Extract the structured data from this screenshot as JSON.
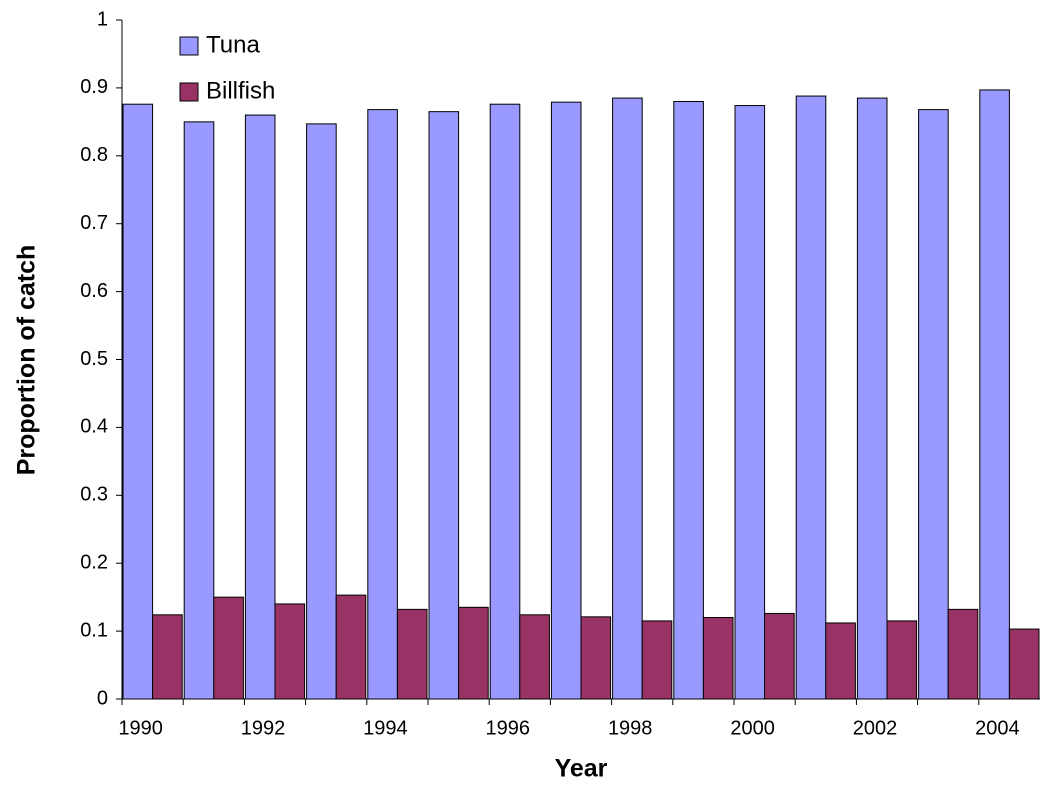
{
  "chart_data": {
    "type": "bar",
    "x_label": "Year",
    "y_label": "Proportion of catch",
    "categories": [
      "1990",
      null,
      "1992",
      null,
      "1994",
      null,
      "1996",
      null,
      "1998",
      null,
      "2000",
      null,
      "2002",
      null,
      "2004"
    ],
    "series": [
      {
        "name": "Tuna",
        "color": "#9999ff",
        "values": [
          0.876,
          0.85,
          0.86,
          0.847,
          0.868,
          0.865,
          0.876,
          0.879,
          0.885,
          0.88,
          0.874,
          0.888,
          0.885,
          0.868,
          0.897
        ]
      },
      {
        "name": "Billfish",
        "color": "#993366",
        "values": [
          0.124,
          0.15,
          0.14,
          0.153,
          0.132,
          0.135,
          0.124,
          0.121,
          0.115,
          0.12,
          0.126,
          0.112,
          0.115,
          0.132,
          0.103
        ]
      }
    ],
    "ylim": [
      0,
      1
    ],
    "yticks": [
      0,
      0.1,
      0.2,
      0.3,
      0.4,
      0.5,
      0.6,
      0.7,
      0.8,
      0.9,
      1
    ],
    "legend": "upper left"
  }
}
